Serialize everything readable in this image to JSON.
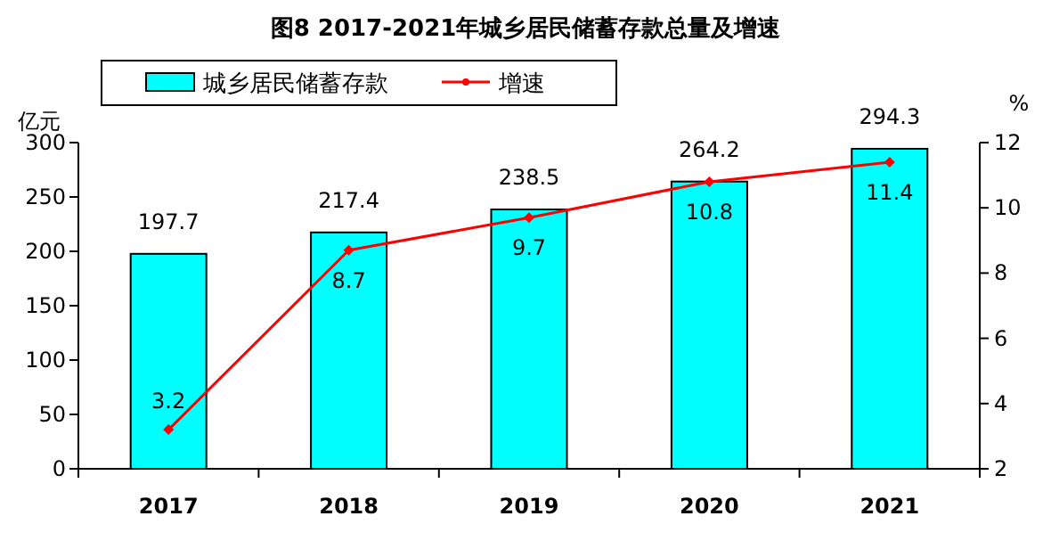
{
  "chart_data": {
    "type": "bar",
    "title": "图8  2017-2021年城乡居民储蓄存款总量及增速",
    "ylabel": "亿元",
    "y2label": "%",
    "categories": [
      "2017",
      "2018",
      "2019",
      "2020",
      "2021"
    ],
    "series": [
      {
        "name": "城乡居民储蓄存款",
        "color": "#00ffff",
        "values": [
          197.7,
          217.4,
          238.5,
          264.2,
          294.3
        ]
      },
      {
        "name": "增速",
        "type": "line",
        "axis": "y2",
        "color": "#ff0000",
        "values": [
          3.2,
          8.7,
          9.7,
          10.8,
          11.4
        ]
      }
    ],
    "ylim": [
      0,
      300
    ],
    "yticks": [
      0,
      50,
      100,
      150,
      200,
      250,
      300
    ],
    "y2lim": [
      2,
      12
    ],
    "y2ticks": [
      2,
      4,
      6,
      8,
      10,
      12
    ],
    "data_labels": true,
    "legend": "top left",
    "marker": "diamond",
    "grid": false
  }
}
